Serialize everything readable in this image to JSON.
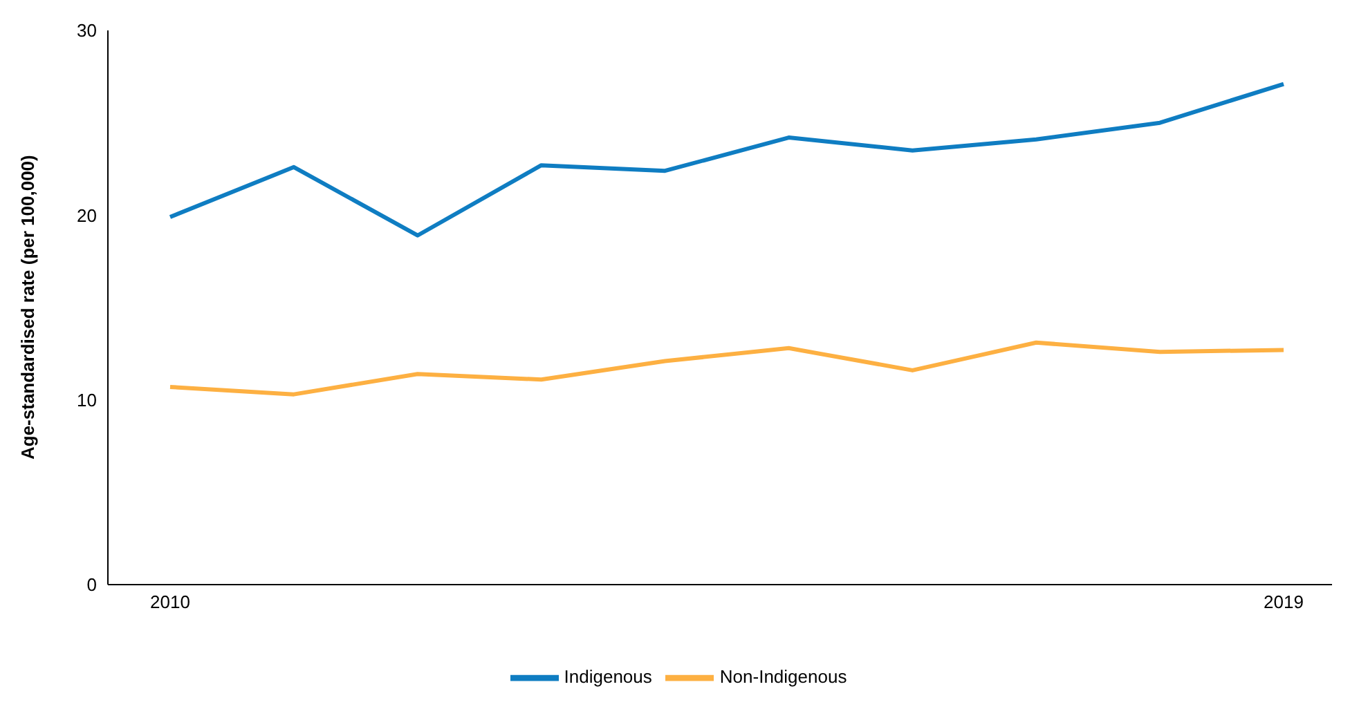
{
  "chart_data": {
    "type": "line",
    "ylabel": "Age-standardised rate (per 100,000)",
    "categories": [
      "2010",
      null,
      null,
      null,
      null,
      null,
      null,
      null,
      null,
      "2019"
    ],
    "series": [
      {
        "name": "Indigenous",
        "color": "#0f7dc2",
        "values": [
          19.9,
          22.6,
          18.9,
          22.7,
          22.4,
          24.2,
          23.5,
          24.1,
          25.0,
          27.1
        ]
      },
      {
        "name": "Non-Indigenous",
        "color": "#fdb042",
        "values": [
          10.7,
          10.3,
          11.4,
          11.1,
          12.1,
          12.8,
          11.6,
          13.1,
          12.6,
          12.7
        ]
      }
    ],
    "ylim": [
      0,
      30
    ],
    "yticks": [
      0,
      10,
      20,
      30
    ],
    "grid": false,
    "legend": "bottom",
    "marker": "none",
    "line_style": "solid"
  }
}
